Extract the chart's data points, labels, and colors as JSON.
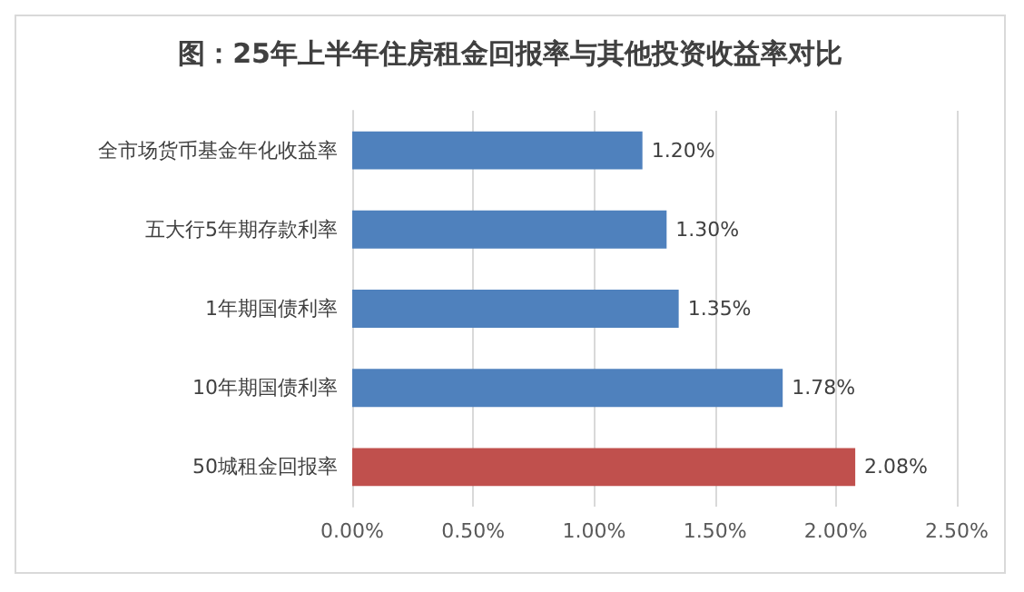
{
  "chart_data": {
    "type": "bar",
    "orientation": "horizontal",
    "title": "图：25年上半年住房租金回报率与其他投资收益率对比",
    "categories": [
      "全市场货币基金年化收益率",
      "五大行5年期存款利率",
      "1年期国债利率",
      "10年期国债利率",
      "50城租金回报率"
    ],
    "values": [
      1.2,
      1.3,
      1.35,
      1.78,
      2.08
    ],
    "value_labels": [
      "1.20%",
      "1.30%",
      "1.35%",
      "1.78%",
      "2.08%"
    ],
    "colors": [
      "#4f81bd",
      "#4f81bd",
      "#4f81bd",
      "#4f81bd",
      "#c0504d"
    ],
    "xlim": [
      0,
      2.5
    ],
    "xticks": [
      {
        "value": 0,
        "label": "0.00%"
      },
      {
        "value": 0.5,
        "label": "0.50%"
      },
      {
        "value": 1,
        "label": "1.00%"
      },
      {
        "value": 1.5,
        "label": "1.50%"
      },
      {
        "value": 2,
        "label": "2.00%"
      },
      {
        "value": 2.5,
        "label": "2.50%"
      }
    ],
    "grid": "x"
  }
}
